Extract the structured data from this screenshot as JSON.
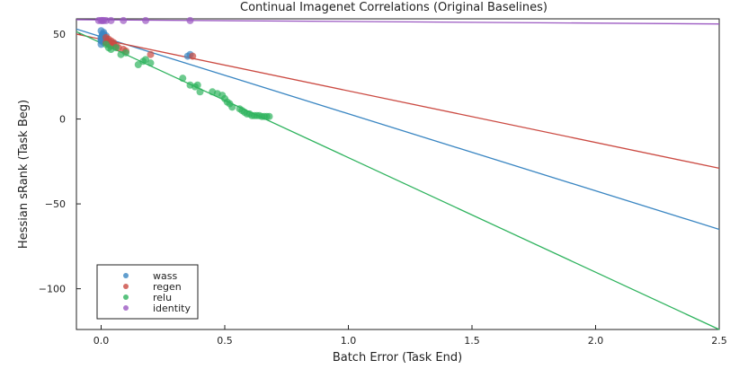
{
  "chart_data": {
    "type": "scatter",
    "title": "Continual Imagenet Correlations (Original Baselines)",
    "xlabel": "Batch Error (Task End)",
    "ylabel": "Hessian sRank (Task Beg)",
    "xlim": [
      -0.1,
      2.5
    ],
    "ylim": [
      -124,
      59
    ],
    "xticks": [
      0.0,
      0.5,
      1.0,
      1.5,
      2.0,
      2.5
    ],
    "xtick_labels": [
      "0.0",
      "0.5",
      "1.0",
      "1.5",
      "2.0",
      "2.5"
    ],
    "yticks": [
      -100,
      -50,
      0,
      50
    ],
    "ytick_labels": [
      "−100",
      "−50",
      "0",
      "50"
    ],
    "grid": false,
    "legend_position": "bottom-left",
    "series": [
      {
        "name": "wass",
        "color": "#3a86c2",
        "points": [
          [
            0.0,
            44
          ],
          [
            0.0,
            46
          ],
          [
            0.0,
            47
          ],
          [
            0.0,
            48
          ],
          [
            0.005,
            49
          ],
          [
            0.005,
            50
          ],
          [
            0.01,
            50
          ],
          [
            0.01,
            51
          ],
          [
            0.0,
            52
          ],
          [
            0.02,
            49
          ],
          [
            0.01,
            45
          ],
          [
            0.02,
            47
          ],
          [
            0.35,
            37
          ],
          [
            0.36,
            38
          ]
        ],
        "fit": [
          [
            -0.1,
            53.0
          ],
          [
            2.5,
            -65.0
          ]
        ]
      },
      {
        "name": "regen",
        "color": "#cb4a42",
        "points": [
          [
            0.02,
            48
          ],
          [
            0.03,
            47
          ],
          [
            0.04,
            46
          ],
          [
            0.05,
            45
          ],
          [
            0.03,
            44
          ],
          [
            0.04,
            43
          ],
          [
            0.06,
            43
          ],
          [
            0.07,
            42
          ],
          [
            0.09,
            41
          ],
          [
            0.1,
            40
          ],
          [
            0.2,
            38
          ],
          [
            0.37,
            37
          ],
          [
            0.02,
            45
          ],
          [
            0.05,
            44
          ]
        ],
        "fit": [
          [
            -0.1,
            50.0
          ],
          [
            2.5,
            -29.0
          ]
        ]
      },
      {
        "name": "relu",
        "color": "#2fb35e",
        "points": [
          [
            0.02,
            44
          ],
          [
            0.03,
            42
          ],
          [
            0.04,
            41
          ],
          [
            0.06,
            42
          ],
          [
            0.08,
            38
          ],
          [
            0.1,
            39
          ],
          [
            0.15,
            32
          ],
          [
            0.17,
            34
          ],
          [
            0.18,
            35
          ],
          [
            0.2,
            33
          ],
          [
            0.33,
            24
          ],
          [
            0.36,
            20
          ],
          [
            0.38,
            19
          ],
          [
            0.39,
            20
          ],
          [
            0.4,
            16
          ],
          [
            0.45,
            16
          ],
          [
            0.47,
            15
          ],
          [
            0.49,
            14
          ],
          [
            0.5,
            12
          ],
          [
            0.51,
            10
          ],
          [
            0.52,
            9
          ],
          [
            0.53,
            7
          ],
          [
            0.56,
            6
          ],
          [
            0.57,
            5
          ],
          [
            0.58,
            4
          ],
          [
            0.59,
            3
          ],
          [
            0.6,
            3
          ],
          [
            0.61,
            2
          ],
          [
            0.62,
            2
          ],
          [
            0.63,
            2
          ],
          [
            0.64,
            2
          ],
          [
            0.65,
            1.5
          ],
          [
            0.66,
            1.5
          ],
          [
            0.67,
            1.5
          ],
          [
            0.68,
            1.5
          ]
        ],
        "fit": [
          [
            -0.1,
            51.5
          ],
          [
            2.5,
            -124.0
          ]
        ]
      },
      {
        "name": "identity",
        "color": "#9b59c2",
        "points": [
          [
            -0.01,
            58
          ],
          [
            0.0,
            58
          ],
          [
            0.005,
            58
          ],
          [
            0.01,
            58
          ],
          [
            0.02,
            58
          ],
          [
            0.04,
            58
          ],
          [
            0.09,
            58
          ],
          [
            0.18,
            58
          ],
          [
            0.36,
            58
          ]
        ],
        "fit": [
          [
            -0.1,
            58.5
          ],
          [
            2.5,
            56.0
          ]
        ]
      }
    ]
  }
}
